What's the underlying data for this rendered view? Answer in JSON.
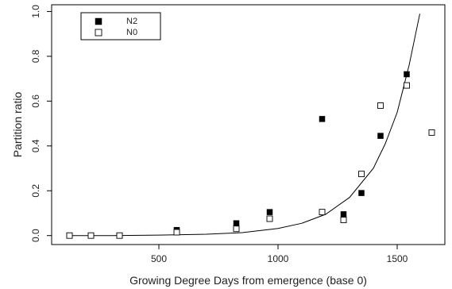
{
  "chart_data": {
    "type": "scatter",
    "title": "",
    "xlabel": "Growing Degree Days from emergence (base 0)",
    "ylabel": "Partition ratio",
    "xlim": [
      50,
      1700
    ],
    "ylim": [
      -0.04,
      1.03
    ],
    "xticks": [
      500,
      1000,
      1500
    ],
    "yticks": [
      0.0,
      0.2,
      0.4,
      0.6,
      0.8,
      1.0
    ],
    "xtick_labels": [
      "500",
      "1000",
      "1500"
    ],
    "ytick_labels": [
      "0.0",
      "0.2",
      "0.4",
      "0.6",
      "0.8",
      "1.0"
    ],
    "grid": false,
    "legend_position": "top-left",
    "series": [
      {
        "name": "N2",
        "marker": "filled-square",
        "color": "#000000",
        "x": [
          125,
          215,
          335,
          575,
          825,
          965,
          1185,
          1275,
          1350,
          1430,
          1540
        ],
        "y": [
          0.0,
          0.0,
          0.0,
          0.025,
          0.055,
          0.105,
          0.52,
          0.095,
          0.19,
          0.445,
          0.72
        ]
      },
      {
        "name": "N0",
        "marker": "open-square",
        "color": "#000000",
        "x": [
          125,
          215,
          335,
          575,
          825,
          965,
          1185,
          1275,
          1350,
          1430,
          1540,
          1645
        ],
        "y": [
          0.0,
          0.0,
          0.0,
          0.015,
          0.03,
          0.075,
          0.105,
          0.07,
          0.275,
          0.58,
          0.67,
          0.46
        ]
      }
    ],
    "fitted_curve": {
      "x": [
        125,
        300,
        500,
        700,
        850,
        1000,
        1100,
        1200,
        1300,
        1400,
        1450,
        1500,
        1550,
        1595
      ],
      "y": [
        0.0,
        0.0,
        0.002,
        0.006,
        0.013,
        0.032,
        0.055,
        0.095,
        0.17,
        0.3,
        0.41,
        0.55,
        0.76,
        0.99
      ]
    }
  }
}
